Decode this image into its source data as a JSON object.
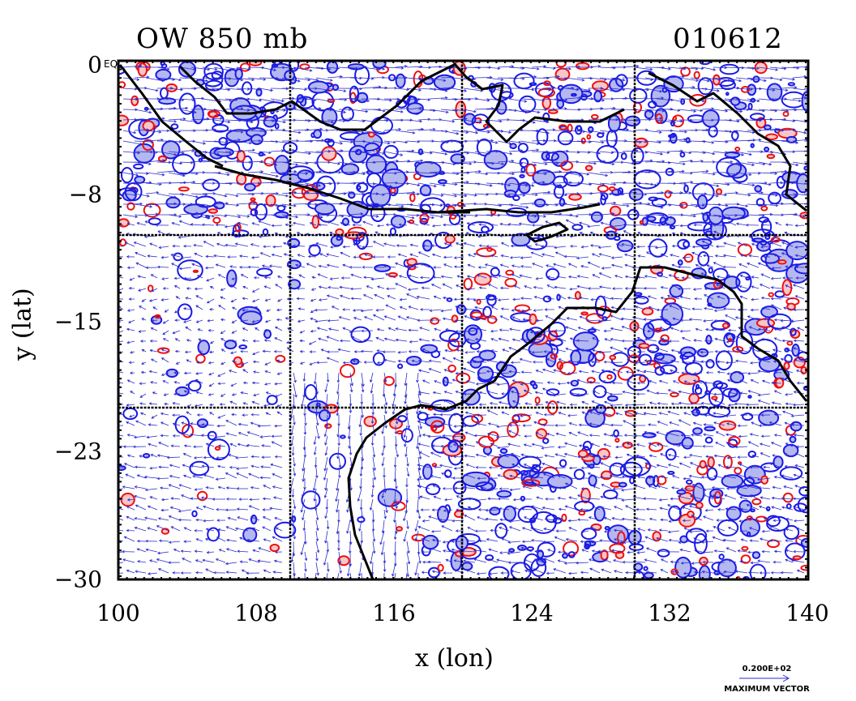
{
  "title_left": "OW 850 mb",
  "title_right": "010612",
  "corner_label": "EQ",
  "axes": {
    "xlabel": "x (lon)",
    "ylabel": "y (lat)",
    "x_ticks": [
      "100",
      "108",
      "116",
      "124",
      "132",
      "140"
    ],
    "y_ticks": [
      "0",
      "−8",
      "−15",
      "−23",
      "−30"
    ],
    "x_range": [
      100,
      140
    ],
    "y_range": [
      -30,
      0
    ]
  },
  "legend": {
    "value": "0.200E+02",
    "label": "MAXIMUM VECTOR"
  },
  "colors": {
    "positive_contour": "#ee1111",
    "positive_fill": "#f8c6c6",
    "negative_contour": "#1a1ae6",
    "negative_fill": "#b4b8f0",
    "vector": "#2a2ad0",
    "coastline": "#000000"
  },
  "map": {
    "gridlines_lon": [
      110,
      120,
      130
    ],
    "gridlines_lat": [
      -10,
      -20
    ],
    "features": [
      "Indonesia",
      "New Guinea",
      "Northern Australia",
      "Western Australia"
    ]
  }
}
